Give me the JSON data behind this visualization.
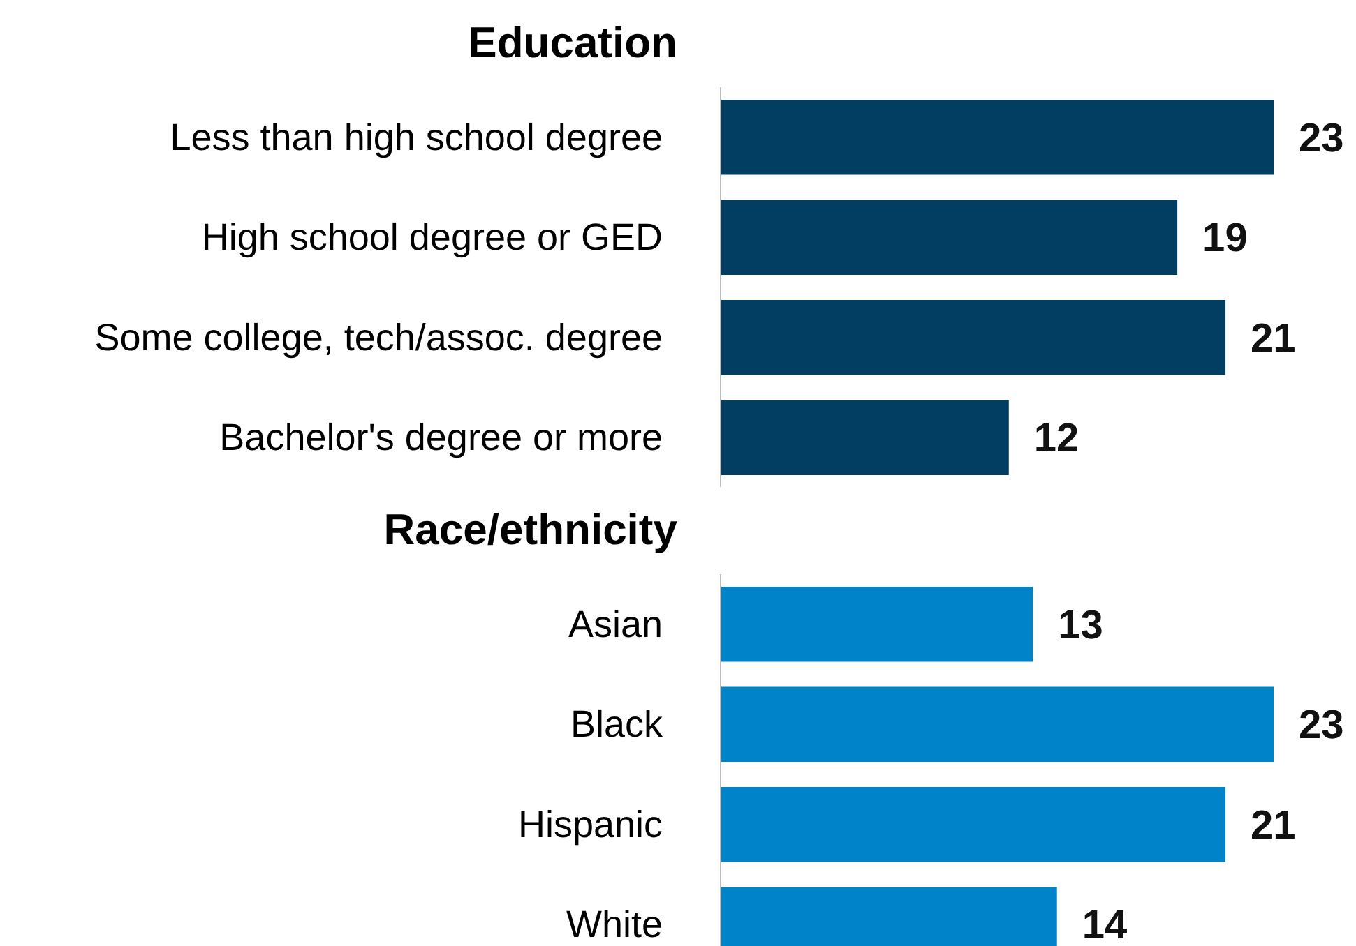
{
  "chart_data": [
    {
      "type": "bar",
      "orientation": "horizontal",
      "title": "Education",
      "categories": [
        "Less than high school degree",
        "High school degree or GED",
        "Some college, tech/assoc. degree",
        "Bachelor's degree or more"
      ],
      "values": [
        23,
        19,
        21,
        12
      ],
      "color": "#023e62",
      "data_labels": true
    },
    {
      "type": "bar",
      "orientation": "horizontal",
      "title": "Race/ethnicity",
      "categories": [
        "Asian",
        "Black",
        "Hispanic",
        "White"
      ],
      "values": [
        13,
        23,
        21,
        14
      ],
      "color": "#0083c9",
      "data_labels": true
    }
  ]
}
